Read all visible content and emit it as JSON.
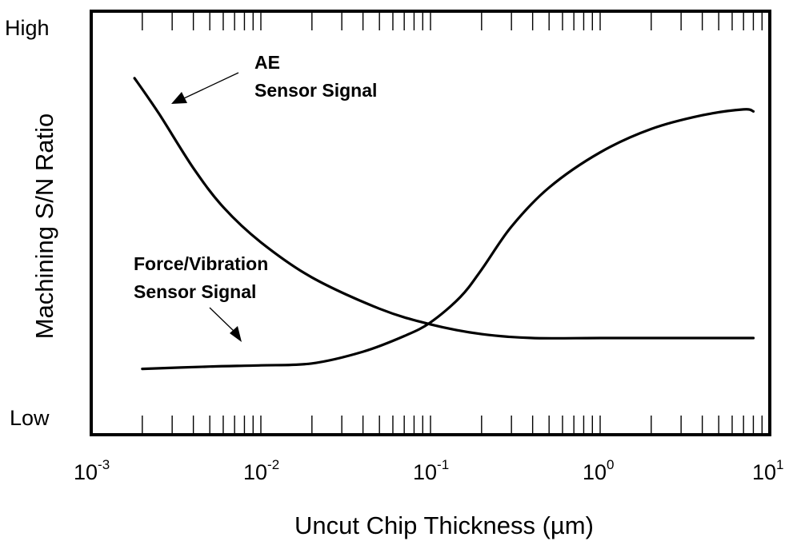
{
  "chart_data": {
    "type": "line",
    "title": "",
    "xlabel": "Uncut Chip Thickness (µm)",
    "ylabel": "Machining S/N Ratio",
    "x_scale": "log",
    "xlim": [
      0.001,
      10
    ],
    "ylim": [
      0,
      1
    ],
    "grid": false,
    "x_tick_labels": [
      {
        "value": 0.001,
        "base": "10",
        "exp": "-3"
      },
      {
        "value": 0.01,
        "base": "10",
        "exp": "-2"
      },
      {
        "value": 0.1,
        "base": "10",
        "exp": "-1"
      },
      {
        "value": 1,
        "base": "10",
        "exp": "0"
      },
      {
        "value": 10,
        "base": "10",
        "exp": "1"
      }
    ],
    "y_tick_labels": [
      {
        "value": 1,
        "label": "High"
      },
      {
        "value": 0,
        "label": "Low"
      }
    ],
    "series": [
      {
        "points": [
          [
            0.0018,
            0.89
          ],
          [
            0.0025,
            0.8
          ],
          [
            0.004,
            0.66
          ],
          [
            0.006,
            0.56
          ],
          [
            0.01,
            0.47
          ],
          [
            0.02,
            0.38
          ],
          [
            0.05,
            0.3
          ],
          [
            0.1,
            0.26
          ],
          [
            0.2,
            0.235
          ],
          [
            0.4,
            0.225
          ],
          [
            1,
            0.225
          ],
          [
            3,
            0.225
          ],
          [
            8,
            0.225
          ]
        ]
      },
      {
        "points": [
          [
            0.002,
            0.146
          ],
          [
            0.005,
            0.152
          ],
          [
            0.01,
            0.155
          ],
          [
            0.02,
            0.16
          ],
          [
            0.04,
            0.19
          ],
          [
            0.07,
            0.23
          ],
          [
            0.1,
            0.265
          ],
          [
            0.15,
            0.33
          ],
          [
            0.2,
            0.4
          ],
          [
            0.3,
            0.51
          ],
          [
            0.5,
            0.61
          ],
          [
            1,
            0.7
          ],
          [
            2,
            0.76
          ],
          [
            4,
            0.795
          ],
          [
            7,
            0.81
          ],
          [
            8,
            0.805
          ]
        ]
      }
    ],
    "annotations": [
      {
        "lines": [
          "AE",
          "Sensor Signal"
        ],
        "target": [
          0.0025,
          0.8
        ]
      },
      {
        "lines": [
          "Force/Vibration",
          "Sensor Signal"
        ],
        "target": [
          0.008,
          0.155
        ]
      }
    ]
  }
}
